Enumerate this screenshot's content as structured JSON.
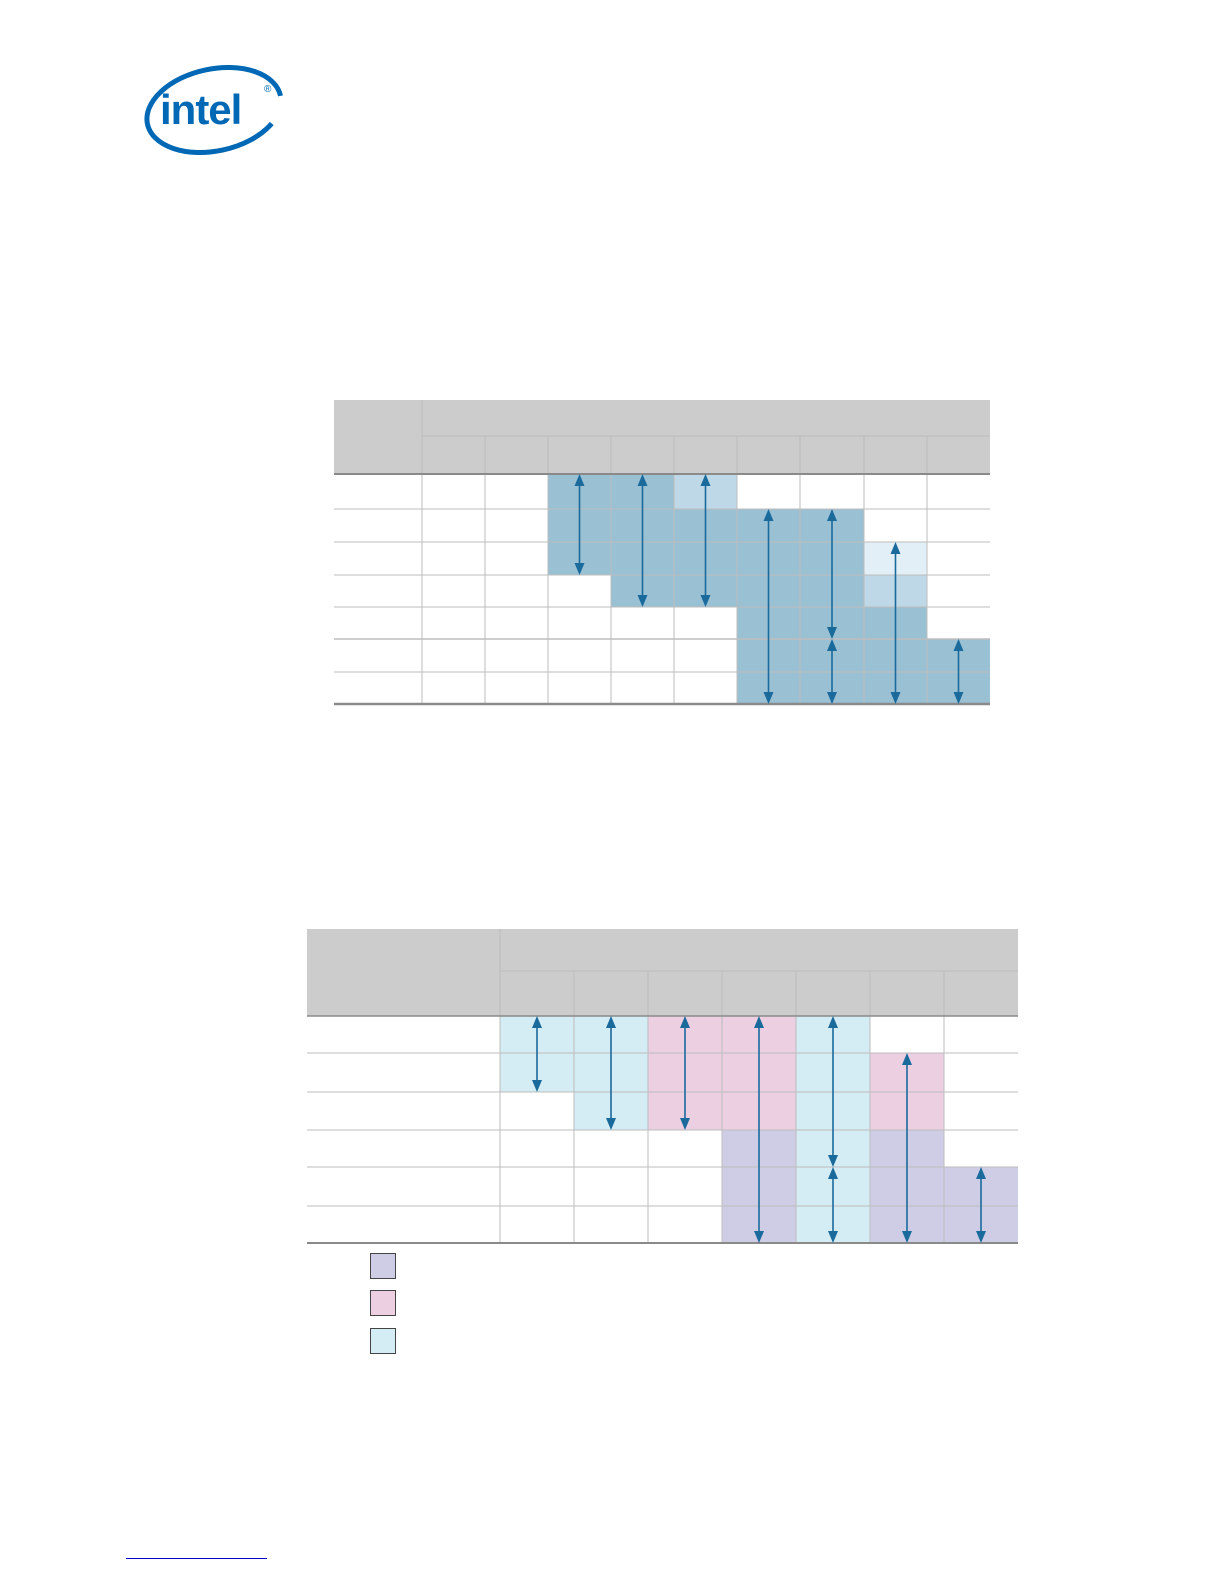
{
  "brand": {
    "logo_text": "intel",
    "logo_mark": "®",
    "colors": {
      "logo_blue": "#0068b5"
    }
  },
  "colors": {
    "header_gray": "#cccccc",
    "grid_line": "#bdbdbd",
    "rule_dark": "#8a8a8a",
    "arrow": "#1a6a9c",
    "t1_dark": "#9ac0d4",
    "t1_mid": "#bed8e7",
    "t1_light": "#e3eff6",
    "t2_blue": "#d4ecf3",
    "t2_pink": "#ecd0e2",
    "t2_purple": "#cfcde6"
  },
  "table1": {
    "columns": 9,
    "rows": 7,
    "shading": [
      [
        "w",
        "w",
        "d",
        "d",
        "m",
        "w",
        "w",
        "w",
        "w"
      ],
      [
        "w",
        "w",
        "d",
        "d",
        "d",
        "d",
        "d",
        "w",
        "w"
      ],
      [
        "w",
        "w",
        "d",
        "d",
        "d",
        "d",
        "d",
        "l",
        "w"
      ],
      [
        "w",
        "w",
        "w",
        "d",
        "d",
        "d",
        "d",
        "m",
        "w"
      ],
      [
        "w",
        "w",
        "w",
        "w",
        "w",
        "d",
        "d",
        "d",
        "w"
      ],
      [
        "w",
        "w",
        "w",
        "w",
        "w",
        "d",
        "d",
        "d",
        "d"
      ],
      [
        "w",
        "w",
        "w",
        "w",
        "w",
        "d",
        "d",
        "d",
        "d"
      ]
    ],
    "arrows": [
      {
        "col": 2,
        "from_row": 0,
        "to_row": 2
      },
      {
        "col": 3,
        "from_row": 0,
        "to_row": 3
      },
      {
        "col": 4,
        "from_row": 0,
        "to_row": 3
      },
      {
        "col": 5,
        "from_row": 1,
        "to_row": 6
      },
      {
        "col": 6,
        "from_row": 1,
        "to_row": 4
      },
      {
        "col": 6,
        "from_row": 5,
        "to_row": 6
      },
      {
        "col": 7,
        "from_row": 2,
        "to_row": 6
      },
      {
        "col": 8,
        "from_row": 5,
        "to_row": 6
      }
    ]
  },
  "table2": {
    "columns": 7,
    "rows": 6,
    "shading": [
      [
        "b",
        "b",
        "p",
        "p",
        "b",
        "w",
        "w"
      ],
      [
        "b",
        "b",
        "p",
        "p",
        "b",
        "p",
        "w"
      ],
      [
        "w",
        "b",
        "p",
        "p",
        "b",
        "p",
        "w"
      ],
      [
        "w",
        "w",
        "w",
        "v",
        "b",
        "v",
        "w"
      ],
      [
        "w",
        "w",
        "w",
        "v",
        "b",
        "v",
        "v"
      ],
      [
        "w",
        "w",
        "w",
        "v",
        "b",
        "v",
        "v"
      ]
    ],
    "arrows": [
      {
        "col": 0,
        "from_row": 0,
        "to_row": 1
      },
      {
        "col": 1,
        "from_row": 0,
        "to_row": 2
      },
      {
        "col": 2,
        "from_row": 0,
        "to_row": 2
      },
      {
        "col": 3,
        "from_row": 0,
        "to_row": 5
      },
      {
        "col": 4,
        "from_row": 0,
        "to_row": 3
      },
      {
        "col": 4,
        "from_row": 4,
        "to_row": 5
      },
      {
        "col": 5,
        "from_row": 1,
        "to_row": 5
      },
      {
        "col": 6,
        "from_row": 4,
        "to_row": 5
      }
    ],
    "legend": [
      "v",
      "p",
      "b"
    ]
  }
}
